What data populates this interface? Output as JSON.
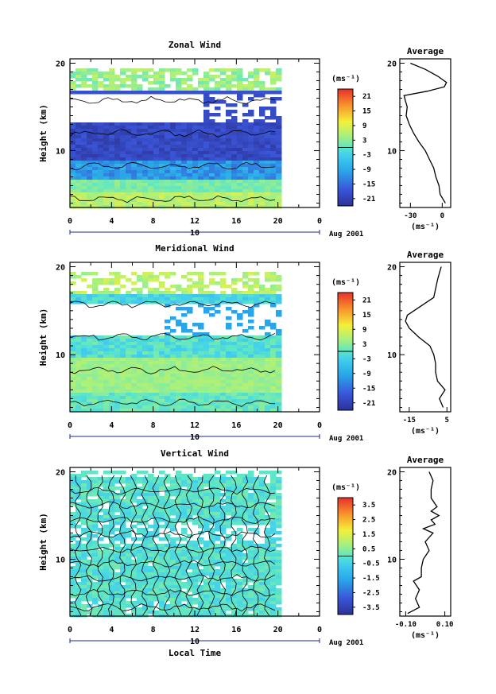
{
  "figure": {
    "colorbar_unit": "(ms⁻¹)",
    "average_unit": "(ms⁻¹)",
    "date_label": "Aug 2001",
    "day_label": "10",
    "xlabel_bottom": "Local Time"
  },
  "chart_data": [
    {
      "type": "heatmap",
      "title": "Zonal Wind",
      "xlabel": "",
      "ylabel": "Height (km)",
      "x_ticks": [
        "0",
        "4",
        "8",
        "12",
        "16",
        "20",
        "0"
      ],
      "xlim": [
        0,
        24
      ],
      "y_ticks": [
        "20",
        "10"
      ],
      "ylim": [
        3.5,
        20.5
      ],
      "colorbar": {
        "unit": "(ms⁻¹)",
        "ticks": [
          "21",
          "15",
          "9",
          "3",
          "-3",
          "-9",
          "-15",
          "-21"
        ],
        "range": [
          -24,
          24
        ]
      },
      "average": {
        "title": "Average",
        "x_ticks": [
          "-30",
          "0"
        ],
        "xlim": [
          -40,
          8
        ],
        "profile": [
          [
            4.0,
            3
          ],
          [
            5.0,
            -2
          ],
          [
            6.0,
            -3
          ],
          [
            7.0,
            -6
          ],
          [
            8.0,
            -8
          ],
          [
            9.0,
            -12
          ],
          [
            10.0,
            -16
          ],
          [
            11.0,
            -22
          ],
          [
            12.0,
            -27
          ],
          [
            13.0,
            -31
          ],
          [
            14.0,
            -34
          ],
          [
            15.0,
            -33
          ],
          [
            15.8,
            -35
          ],
          [
            16.3,
            -36
          ],
          [
            16.8,
            -14
          ],
          [
            17.3,
            2
          ],
          [
            17.8,
            4
          ],
          [
            18.5,
            -4
          ],
          [
            19.3,
            -16
          ],
          [
            20.0,
            -30
          ]
        ]
      }
    },
    {
      "type": "heatmap",
      "title": "Meridional Wind",
      "xlabel": "",
      "ylabel": "Height (km)",
      "x_ticks": [
        "0",
        "4",
        "8",
        "12",
        "16",
        "20",
        "0"
      ],
      "xlim": [
        0,
        24
      ],
      "y_ticks": [
        "20",
        "10"
      ],
      "ylim": [
        3.5,
        20.5
      ],
      "colorbar": {
        "unit": "(ms⁻¹)",
        "ticks": [
          "21",
          "15",
          "9",
          "3",
          "-3",
          "-9",
          "-15",
          "-21"
        ],
        "range": [
          -24,
          24
        ]
      },
      "average": {
        "title": "Average",
        "x_ticks": [
          "-15",
          "5"
        ],
        "xlim": [
          -20,
          7
        ],
        "profile": [
          [
            4.0,
            3
          ],
          [
            5.0,
            1
          ],
          [
            6.0,
            4
          ],
          [
            7.0,
            0
          ],
          [
            8.0,
            -1
          ],
          [
            9.0,
            -1
          ],
          [
            10.0,
            -2
          ],
          [
            11.0,
            -4
          ],
          [
            12.0,
            -10
          ],
          [
            13.0,
            -15
          ],
          [
            13.8,
            -17
          ],
          [
            14.5,
            -16
          ],
          [
            15.5,
            -9
          ],
          [
            16.5,
            -2
          ],
          [
            17.5,
            -1
          ],
          [
            18.5,
            0
          ],
          [
            19.3,
            1
          ],
          [
            20.0,
            2
          ]
        ]
      }
    },
    {
      "type": "heatmap",
      "title": "Vertical Wind",
      "xlabel": "Local Time",
      "ylabel": "Height (km)",
      "x_ticks": [
        "0",
        "4",
        "8",
        "12",
        "16",
        "20",
        "0"
      ],
      "xlim": [
        0,
        24
      ],
      "y_ticks": [
        "20",
        "10"
      ],
      "ylim": [
        3.5,
        20.5
      ],
      "colorbar": {
        "unit": "(ms⁻¹)",
        "ticks": [
          "3.5",
          "2.5",
          "1.5",
          "0.5",
          "-0.5",
          "-1.5",
          "-2.5",
          "-3.5"
        ],
        "range": [
          -4,
          4
        ]
      },
      "average": {
        "title": "Average",
        "x_ticks": [
          "-0.10",
          "0.10"
        ],
        "xlim": [
          -0.13,
          0.13
        ],
        "profile": [
          [
            3.8,
            -0.09
          ],
          [
            4.5,
            -0.03
          ],
          [
            5.5,
            -0.05
          ],
          [
            6.5,
            -0.03
          ],
          [
            7.5,
            -0.06
          ],
          [
            8.0,
            -0.02
          ],
          [
            9.0,
            -0.02
          ],
          [
            10.0,
            -0.01
          ],
          [
            11.0,
            0.02
          ],
          [
            12.0,
            0.0
          ],
          [
            13.0,
            0.04
          ],
          [
            13.5,
            -0.01
          ],
          [
            14.0,
            0.05
          ],
          [
            14.5,
            0.03
          ],
          [
            15.0,
            0.07
          ],
          [
            15.5,
            0.03
          ],
          [
            16.0,
            0.06
          ],
          [
            17.0,
            0.03
          ],
          [
            18.0,
            0.03
          ],
          [
            19.0,
            0.04
          ],
          [
            20.0,
            0.02
          ]
        ]
      }
    }
  ]
}
